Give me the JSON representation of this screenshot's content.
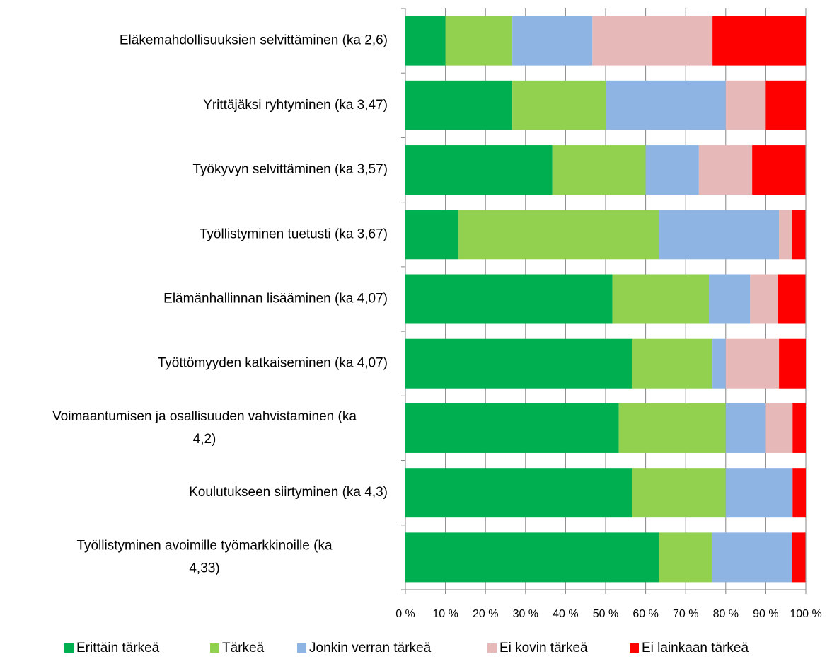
{
  "chart_data": {
    "type": "stacked-bar-horizontal",
    "categories": [
      "Eläkemahdollisuuksien selvittäminen (ka 2,6)",
      "Yrittäjäksi ryhtyminen (ka 3,47)",
      "Työkyvyn selvittäminen (ka 3,57)",
      "Työllistyminen tuetusti (ka 3,67)",
      "Elämänhallinnan lisääminen (ka 4,07)",
      "Työttömyyden katkaiseminen (ka 4,07)",
      "Voimaantumisen ja osallisuuden vahvistaminen (ka 4,2)",
      "Koulutukseen siirtyminen (ka 4,3)",
      "Työllistyminen avoimille työmarkkinoille (ka 4,33)"
    ],
    "series": [
      {
        "name": "Erittäin tärkeä",
        "color": "#00b050",
        "values": [
          10,
          26.7,
          36.7,
          13.3,
          51.7,
          56.7,
          53.3,
          56.7,
          63.3
        ]
      },
      {
        "name": "Tärkeä",
        "color": "#92d050",
        "values": [
          16.7,
          23.3,
          23.3,
          50,
          24.1,
          20,
          26.7,
          23.3,
          13.3
        ]
      },
      {
        "name": "Jonkin verran tärkeä",
        "color": "#8eb4e3",
        "values": [
          20,
          30,
          13.3,
          30,
          10.3,
          3.3,
          10,
          16.7,
          20
        ]
      },
      {
        "name": "Ei kovin tärkeä",
        "color": "#e6b9b8",
        "values": [
          30,
          10,
          13.3,
          3.3,
          6.9,
          13.3,
          6.7,
          0,
          0
        ]
      },
      {
        "name": "Ei lainkaan tärkeä",
        "color": "#ff0000",
        "values": [
          23.3,
          10,
          13.3,
          3.3,
          6.9,
          6.7,
          3.3,
          3.3,
          3.3
        ]
      }
    ],
    "xlim": [
      0,
      100
    ],
    "xticks": [
      {
        "value": 0,
        "label": "0 %"
      },
      {
        "value": 10,
        "label": "10 %"
      },
      {
        "value": 20,
        "label": "20 %"
      },
      {
        "value": 30,
        "label": "30 %"
      },
      {
        "value": 40,
        "label": "40 %"
      },
      {
        "value": 50,
        "label": "50 %"
      },
      {
        "value": 60,
        "label": "60 %"
      },
      {
        "value": 70,
        "label": "70 %"
      },
      {
        "value": 80,
        "label": "80 %"
      },
      {
        "value": 90,
        "label": "90 %"
      },
      {
        "value": 100,
        "label": "100 %"
      }
    ],
    "grid": true,
    "legend": "bottom"
  }
}
